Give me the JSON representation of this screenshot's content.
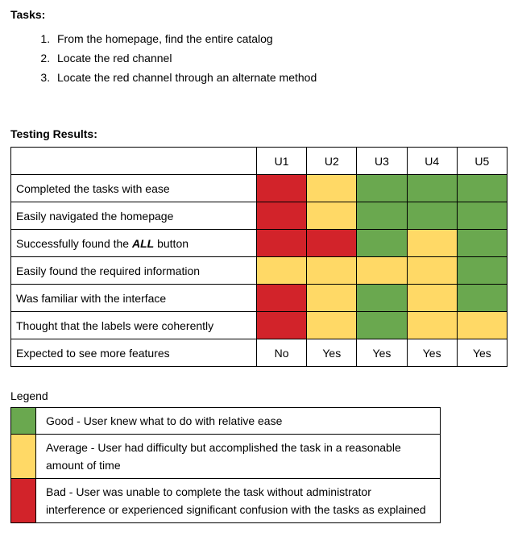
{
  "tasks": {
    "heading": "Tasks:",
    "items": [
      "From the homepage, find the entire catalog",
      "Locate the red channel",
      "Locate the red channel through an alternate method"
    ]
  },
  "results": {
    "heading": "Testing Results:",
    "columns": [
      "U1",
      "U2",
      "U3",
      "U4",
      "U5"
    ],
    "rows": [
      {
        "label": "Completed the tasks with ease",
        "type": "rating",
        "cells": [
          "bad",
          "average",
          "good",
          "good",
          "good"
        ]
      },
      {
        "label": "Easily navigated the homepage",
        "type": "rating",
        "cells": [
          "bad",
          "average",
          "good",
          "good",
          "good"
        ]
      },
      {
        "label": "Successfully found the ALL button",
        "label_parts": {
          "prefix": "Successfully found the ",
          "emphasis": "ALL",
          "suffix": " button"
        },
        "type": "rating",
        "cells": [
          "bad",
          "bad",
          "good",
          "average",
          "good"
        ]
      },
      {
        "label": "Easily found the required information",
        "type": "rating",
        "cells": [
          "average",
          "average",
          "average",
          "average",
          "good"
        ]
      },
      {
        "label": "Was familiar with the interface",
        "type": "rating",
        "cells": [
          "bad",
          "average",
          "good",
          "average",
          "good"
        ]
      },
      {
        "label": "Thought that the labels were coherently",
        "type": "rating",
        "cells": [
          "bad",
          "average",
          "good",
          "average",
          "average"
        ]
      },
      {
        "label": "Expected to see more features",
        "type": "text",
        "cells": [
          "No",
          "Yes",
          "Yes",
          "Yes",
          "Yes"
        ]
      }
    ]
  },
  "legend": {
    "title": "Legend",
    "rows": [
      {
        "rating": "good",
        "text": "Good - User knew what to do with relative ease"
      },
      {
        "rating": "average",
        "text": "Average - User had difficulty but accomplished the task in a reasonable amount of time"
      },
      {
        "rating": "bad",
        "text": "Bad - User was unable to complete the task without administrator interference or experienced significant confusion with the tasks as explained"
      }
    ]
  },
  "colors": {
    "good": "#6AA84F",
    "average": "#FFD966",
    "bad": "#D2232A"
  }
}
